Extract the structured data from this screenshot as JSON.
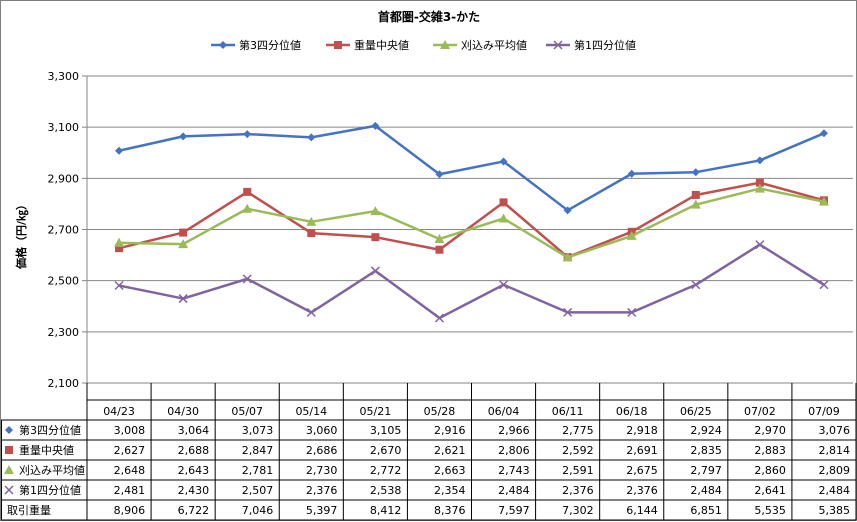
{
  "chart_data": {
    "type": "line",
    "title": "首都圏-交雑3-かた",
    "ylabel": "価格（円/㎏）",
    "ylim": [
      2100,
      3300
    ],
    "yticks": [
      "2,100",
      "2,300",
      "2,500",
      "2,700",
      "2,900",
      "3,100",
      "3,300"
    ],
    "ytick_values": [
      2100,
      2300,
      2500,
      2700,
      2900,
      3100,
      3300
    ],
    "categories": [
      "04/23",
      "04/30",
      "05/07",
      "05/14",
      "05/21",
      "05/28",
      "06/04",
      "06/11",
      "06/18",
      "06/25",
      "07/02",
      "07/09"
    ],
    "grid": true,
    "legend": "top",
    "series": [
      {
        "name": "第3四分位値",
        "color": "#4472c4",
        "marker": "diamond",
        "values": [
          3008,
          3064,
          3073,
          3060,
          3105,
          2916,
          2966,
          2775,
          2918,
          2924,
          2970,
          3076
        ],
        "labels": [
          "3,008",
          "3,064",
          "3,073",
          "3,060",
          "3,105",
          "2,916",
          "2,966",
          "2,775",
          "2,918",
          "2,924",
          "2,970",
          "3,076"
        ]
      },
      {
        "name": "重量中央値",
        "color": "#c0504d",
        "marker": "square",
        "values": [
          2627,
          2688,
          2847,
          2686,
          2670,
          2621,
          2806,
          2592,
          2691,
          2835,
          2883,
          2814
        ],
        "labels": [
          "2,627",
          "2,688",
          "2,847",
          "2,686",
          "2,670",
          "2,621",
          "2,806",
          "2,592",
          "2,691",
          "2,835",
          "2,883",
          "2,814"
        ]
      },
      {
        "name": "刈込み平均値",
        "color": "#9bbb59",
        "marker": "triangle",
        "values": [
          2648,
          2643,
          2781,
          2730,
          2772,
          2663,
          2743,
          2591,
          2675,
          2797,
          2860,
          2809
        ],
        "labels": [
          "2,648",
          "2,643",
          "2,781",
          "2,730",
          "2,772",
          "2,663",
          "2,743",
          "2,591",
          "2,675",
          "2,797",
          "2,860",
          "2,809"
        ]
      },
      {
        "name": "第1四分位値",
        "color": "#8064a2",
        "marker": "x",
        "values": [
          2481,
          2430,
          2507,
          2376,
          2538,
          2354,
          2484,
          2376,
          2376,
          2484,
          2641,
          2484
        ],
        "labels": [
          "2,481",
          "2,430",
          "2,507",
          "2,376",
          "2,538",
          "2,354",
          "2,484",
          "2,376",
          "2,376",
          "2,484",
          "2,641",
          "2,484"
        ]
      }
    ],
    "extra_row": {
      "name": "取引重量",
      "values": [
        "8,906",
        "6,722",
        "7,046",
        "5,397",
        "8,412",
        "8,376",
        "7,597",
        "7,302",
        "6,144",
        "6,851",
        "5,535",
        "5,385"
      ]
    }
  }
}
